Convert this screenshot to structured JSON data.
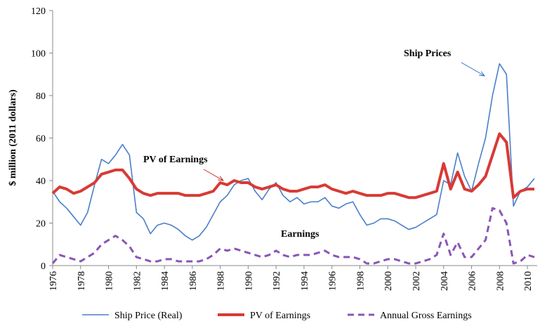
{
  "chart_data": {
    "type": "line",
    "ylabel": "$ million (2011 dollars)",
    "xlim": [
      1976,
      2010.7
    ],
    "xticks": [
      1976,
      1978,
      1980,
      1982,
      1984,
      1986,
      1988,
      1990,
      1992,
      1994,
      1996,
      1998,
      2000,
      2002,
      2004,
      2006,
      2008,
      2010
    ],
    "ylim": [
      0,
      120
    ],
    "yticks": [
      0,
      20,
      40,
      60,
      80,
      100,
      120
    ],
    "legend": "bottom",
    "x": [
      1976,
      1976.5,
      1977,
      1977.5,
      1978,
      1978.5,
      1979,
      1979.5,
      1980,
      1980.5,
      1981,
      1981.5,
      1982,
      1982.5,
      1983,
      1983.5,
      1984,
      1984.5,
      1985,
      1985.5,
      1986,
      1986.5,
      1987,
      1987.5,
      1988,
      1988.5,
      1989,
      1989.5,
      1990,
      1990.5,
      1991,
      1991.5,
      1992,
      1992.5,
      1993,
      1993.5,
      1994,
      1994.5,
      1995,
      1995.5,
      1996,
      1996.5,
      1997,
      1997.5,
      1998,
      1998.5,
      1999,
      1999.5,
      2000,
      2000.5,
      2001,
      2001.5,
      2002,
      2002.5,
      2003,
      2003.5,
      2004,
      2004.5,
      2005,
      2005.5,
      2006,
      2006.5,
      2007,
      2007.5,
      2008,
      2008.5,
      2009,
      2009.5,
      2010,
      2010.5
    ],
    "series": [
      {
        "name": "Ship Price (Real)",
        "color": "#4a7fc9",
        "width": 1.6,
        "dash": "none",
        "values": [
          35,
          30,
          27,
          23,
          19,
          25,
          38,
          50,
          48,
          52,
          57,
          52,
          25,
          22,
          15,
          19,
          20,
          19,
          17,
          14,
          12,
          14,
          18,
          24,
          30,
          33,
          38,
          40,
          41,
          35,
          31,
          36,
          39,
          33,
          30,
          32,
          29,
          30,
          30,
          32,
          28,
          27,
          29,
          30,
          24,
          19,
          20,
          22,
          22,
          21,
          19,
          17,
          18,
          20,
          22,
          24,
          40,
          38,
          53,
          42,
          35,
          48,
          60,
          80,
          95,
          90,
          28,
          35,
          37,
          41
        ]
      },
      {
        "name": "PV of Earnings",
        "color": "#d83a34",
        "width": 4,
        "dash": "none",
        "values": [
          34,
          37,
          36,
          34,
          35,
          37,
          39,
          43,
          44,
          45,
          45,
          41,
          36,
          34,
          33,
          34,
          34,
          34,
          34,
          33,
          33,
          33,
          34,
          35,
          39,
          38,
          40,
          39,
          39,
          37,
          36,
          37,
          38,
          36,
          35,
          35,
          36,
          37,
          37,
          38,
          36,
          35,
          34,
          35,
          34,
          33,
          33,
          33,
          34,
          34,
          33,
          32,
          32,
          33,
          34,
          35,
          48,
          36,
          44,
          36,
          35,
          38,
          42,
          52,
          62,
          58,
          32,
          35,
          36,
          36
        ]
      },
      {
        "name": "Annual Gross Earnings",
        "color": "#8a55b8",
        "width": 3,
        "dash": "9,6",
        "values": [
          1,
          5,
          4,
          3,
          2,
          4,
          6,
          10,
          12,
          14,
          12,
          9,
          4,
          3,
          2,
          2,
          3,
          3,
          2,
          2,
          2,
          2,
          3,
          5,
          8,
          7,
          8,
          7,
          6,
          5,
          4,
          5,
          7,
          5,
          4,
          5,
          5,
          5,
          6,
          7,
          5,
          4,
          4,
          4,
          3,
          1,
          1,
          2,
          3,
          3,
          2,
          1,
          1,
          2,
          3,
          5,
          15,
          5,
          11,
          4,
          4,
          8,
          12,
          27,
          26,
          20,
          1,
          2,
          5,
          4
        ]
      }
    ],
    "annotations": [
      {
        "text": "Ship Prices",
        "color": "#2f6fc4"
      },
      {
        "text": "PV of Earnings",
        "color": "#c8302b"
      },
      {
        "text": "Earnings",
        "color": "#8a55b8"
      }
    ]
  }
}
